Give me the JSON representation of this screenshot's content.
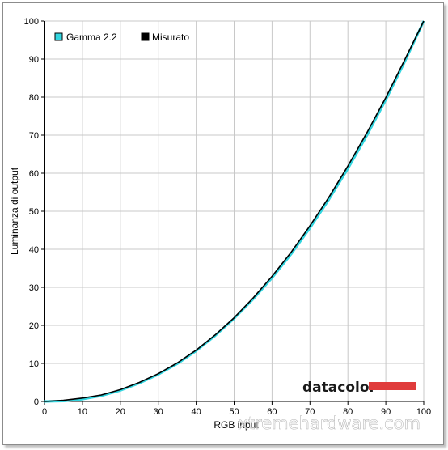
{
  "chart_data": {
    "type": "line",
    "title": "",
    "xlabel": "RGB input",
    "ylabel": "Luminanza di output",
    "xlim": [
      0,
      100
    ],
    "ylim": [
      0,
      100
    ],
    "x_ticks": [
      "0",
      "10",
      "20",
      "30",
      "40",
      "50",
      "60",
      "70",
      "80",
      "90",
      "100"
    ],
    "y_ticks": [
      "0",
      "10",
      "20",
      "30",
      "40",
      "50",
      "60",
      "70",
      "80",
      "90",
      "100"
    ],
    "grid": true,
    "legend_position": "top-left",
    "series": [
      {
        "name": "Gamma 2.2",
        "color": "#33d6e0",
        "x": [
          0,
          5,
          10,
          15,
          20,
          25,
          30,
          35,
          40,
          45,
          50,
          55,
          60,
          65,
          70,
          75,
          80,
          85,
          90,
          95,
          100
        ],
        "y": [
          0,
          0.1,
          0.6,
          1.5,
          2.9,
          4.8,
          7.1,
          9.9,
          13.3,
          17.3,
          21.8,
          26.9,
          32.5,
          38.7,
          45.6,
          53.1,
          61.2,
          69.9,
          79.3,
          89.3,
          100
        ]
      },
      {
        "name": "Misurato",
        "color": "#000000",
        "x": [
          0,
          5,
          10,
          15,
          20,
          25,
          30,
          35,
          40,
          45,
          50,
          55,
          60,
          65,
          70,
          75,
          80,
          85,
          90,
          95,
          100
        ],
        "y": [
          0,
          0.3,
          0.9,
          1.7,
          3.1,
          5.0,
          7.3,
          10.1,
          13.5,
          17.5,
          22.0,
          27.2,
          32.9,
          39.2,
          46.2,
          53.7,
          61.9,
          70.6,
          79.9,
          89.8,
          100
        ]
      }
    ]
  },
  "branding": {
    "logo_text": "datacolor",
    "logo_bar_color": "#e03c3c",
    "watermark": "xtremehardware.com"
  }
}
